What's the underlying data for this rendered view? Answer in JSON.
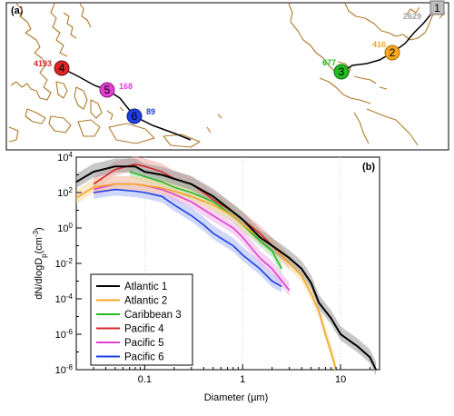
{
  "map_panel": {
    "label": "(a)",
    "coast_color": "#b07a2a",
    "sites": [
      {
        "num": "1",
        "count": "2629",
        "color": "#9e9e9e"
      },
      {
        "num": "2",
        "count": "416",
        "color": "#f5a623"
      },
      {
        "num": "3",
        "count": "677",
        "color": "#22bb22"
      },
      {
        "num": "4",
        "count": "4193",
        "color": "#d62728"
      },
      {
        "num": "5",
        "count": "168",
        "color": "#e03fd1"
      },
      {
        "num": "6",
        "count": "89",
        "color": "#1f3fe0"
      }
    ]
  },
  "chart_data": {
    "type": "line",
    "panel_label": "(b)",
    "xlabel": "Diameter (µm)",
    "ylabel_main": "dN/dlogD",
    "ylabel_sub": "p",
    "ylabel_unit": "(cm",
    "ylabel_exp": "-3",
    "ylabel_close": ")",
    "x_scale": "log",
    "y_scale": "log",
    "xlim": [
      0.02,
      25
    ],
    "ylim": [
      1e-08,
      10000.0
    ],
    "x_ticks": [
      {
        "v": 0.1,
        "label": "0.1"
      },
      {
        "v": 1,
        "label": "1"
      },
      {
        "v": 10,
        "label": "10"
      }
    ],
    "y_ticks": [
      {
        "exp": 4,
        "label": "10",
        "sup": "4"
      },
      {
        "exp": 2,
        "label": "10",
        "sup": "2"
      },
      {
        "exp": 0,
        "label": "10",
        "sup": "0"
      },
      {
        "exp": -2,
        "label": "10",
        "sup": "-2"
      },
      {
        "exp": -4,
        "label": "10",
        "sup": "-4"
      },
      {
        "exp": -6,
        "label": "10",
        "sup": "-6"
      },
      {
        "exp": -8,
        "label": "10",
        "sup": "-8"
      }
    ],
    "grid": "vertical dotted at decades",
    "legend_position": "lower-left",
    "series": [
      {
        "name": "Atlantic 1",
        "color": "#000000",
        "band": "#999999",
        "x": [
          0.02,
          0.03,
          0.05,
          0.08,
          0.1,
          0.15,
          0.2,
          0.3,
          0.5,
          0.8,
          1.0,
          1.5,
          2.0,
          3.0,
          4.0,
          5.0,
          6.0,
          8.0,
          10,
          15,
          20,
          23
        ],
        "y": [
          400,
          1500,
          3000,
          3000,
          1500,
          1000,
          600,
          300,
          60,
          8,
          3,
          0.3,
          0.1,
          0.02,
          0.005,
          0.0008,
          6e-05,
          8e-06,
          1e-06,
          2e-07,
          5e-08,
          1e-08
        ]
      },
      {
        "name": "Atlantic 2",
        "color": "#f5a623",
        "band": "#f7d9a0",
        "x": [
          0.02,
          0.03,
          0.05,
          0.08,
          0.1,
          0.15,
          0.2,
          0.3,
          0.5,
          0.8,
          1.0,
          1.5,
          2.0,
          3.0,
          4.0,
          5.0,
          6.0,
          7.0,
          8.0,
          9.0
        ],
        "y": [
          50,
          200,
          300,
          300,
          250,
          180,
          120,
          60,
          20,
          5,
          1.5,
          0.3,
          0.1,
          0.01,
          0.002,
          0.0002,
          2e-05,
          1e-06,
          1e-07,
          1e-08
        ]
      },
      {
        "name": "Caribbean 3",
        "color": "#22bb22",
        "band": "#a6e0a6",
        "x": [
          0.07,
          0.1,
          0.15,
          0.2,
          0.3,
          0.5,
          0.8,
          1.0,
          1.5,
          2.0,
          2.5
        ],
        "y": [
          1500,
          800,
          400,
          200,
          100,
          30,
          5,
          1.5,
          0.2,
          0.05,
          0.005
        ]
      },
      {
        "name": "Pacific 4",
        "color": "#d62728",
        "band": "#f2a5a5",
        "x": [
          0.03,
          0.05,
          0.08,
          0.1,
          0.15,
          0.2,
          0.3,
          0.4,
          0.5,
          0.8,
          1.0,
          1.5,
          2.0,
          3.0
        ],
        "y": [
          300,
          2000,
          4000,
          3000,
          1500,
          600,
          300,
          100,
          40,
          8,
          3,
          0.5,
          0.1,
          0.01
        ]
      },
      {
        "name": "Pacific 5",
        "color": "#e03fd1",
        "band": "#f2b0ea",
        "x": [
          0.03,
          0.05,
          0.08,
          0.1,
          0.15,
          0.2,
          0.3,
          0.5,
          0.8,
          1.0,
          1.5,
          2.0,
          3.0
        ],
        "y": [
          150,
          300,
          300,
          250,
          150,
          80,
          30,
          5,
          1,
          0.3,
          0.02,
          0.005,
          0.0003
        ]
      },
      {
        "name": "Pacific 6",
        "color": "#1f3fe0",
        "band": "#a8b8f5",
        "x": [
          0.03,
          0.05,
          0.08,
          0.1,
          0.15,
          0.2,
          0.3,
          0.4,
          0.5,
          0.8,
          1.0,
          1.5,
          2.0,
          2.5
        ],
        "y": [
          100,
          150,
          120,
          100,
          60,
          20,
          5,
          1.5,
          0.5,
          0.1,
          0.03,
          0.005,
          0.001,
          0.0005
        ]
      }
    ]
  }
}
